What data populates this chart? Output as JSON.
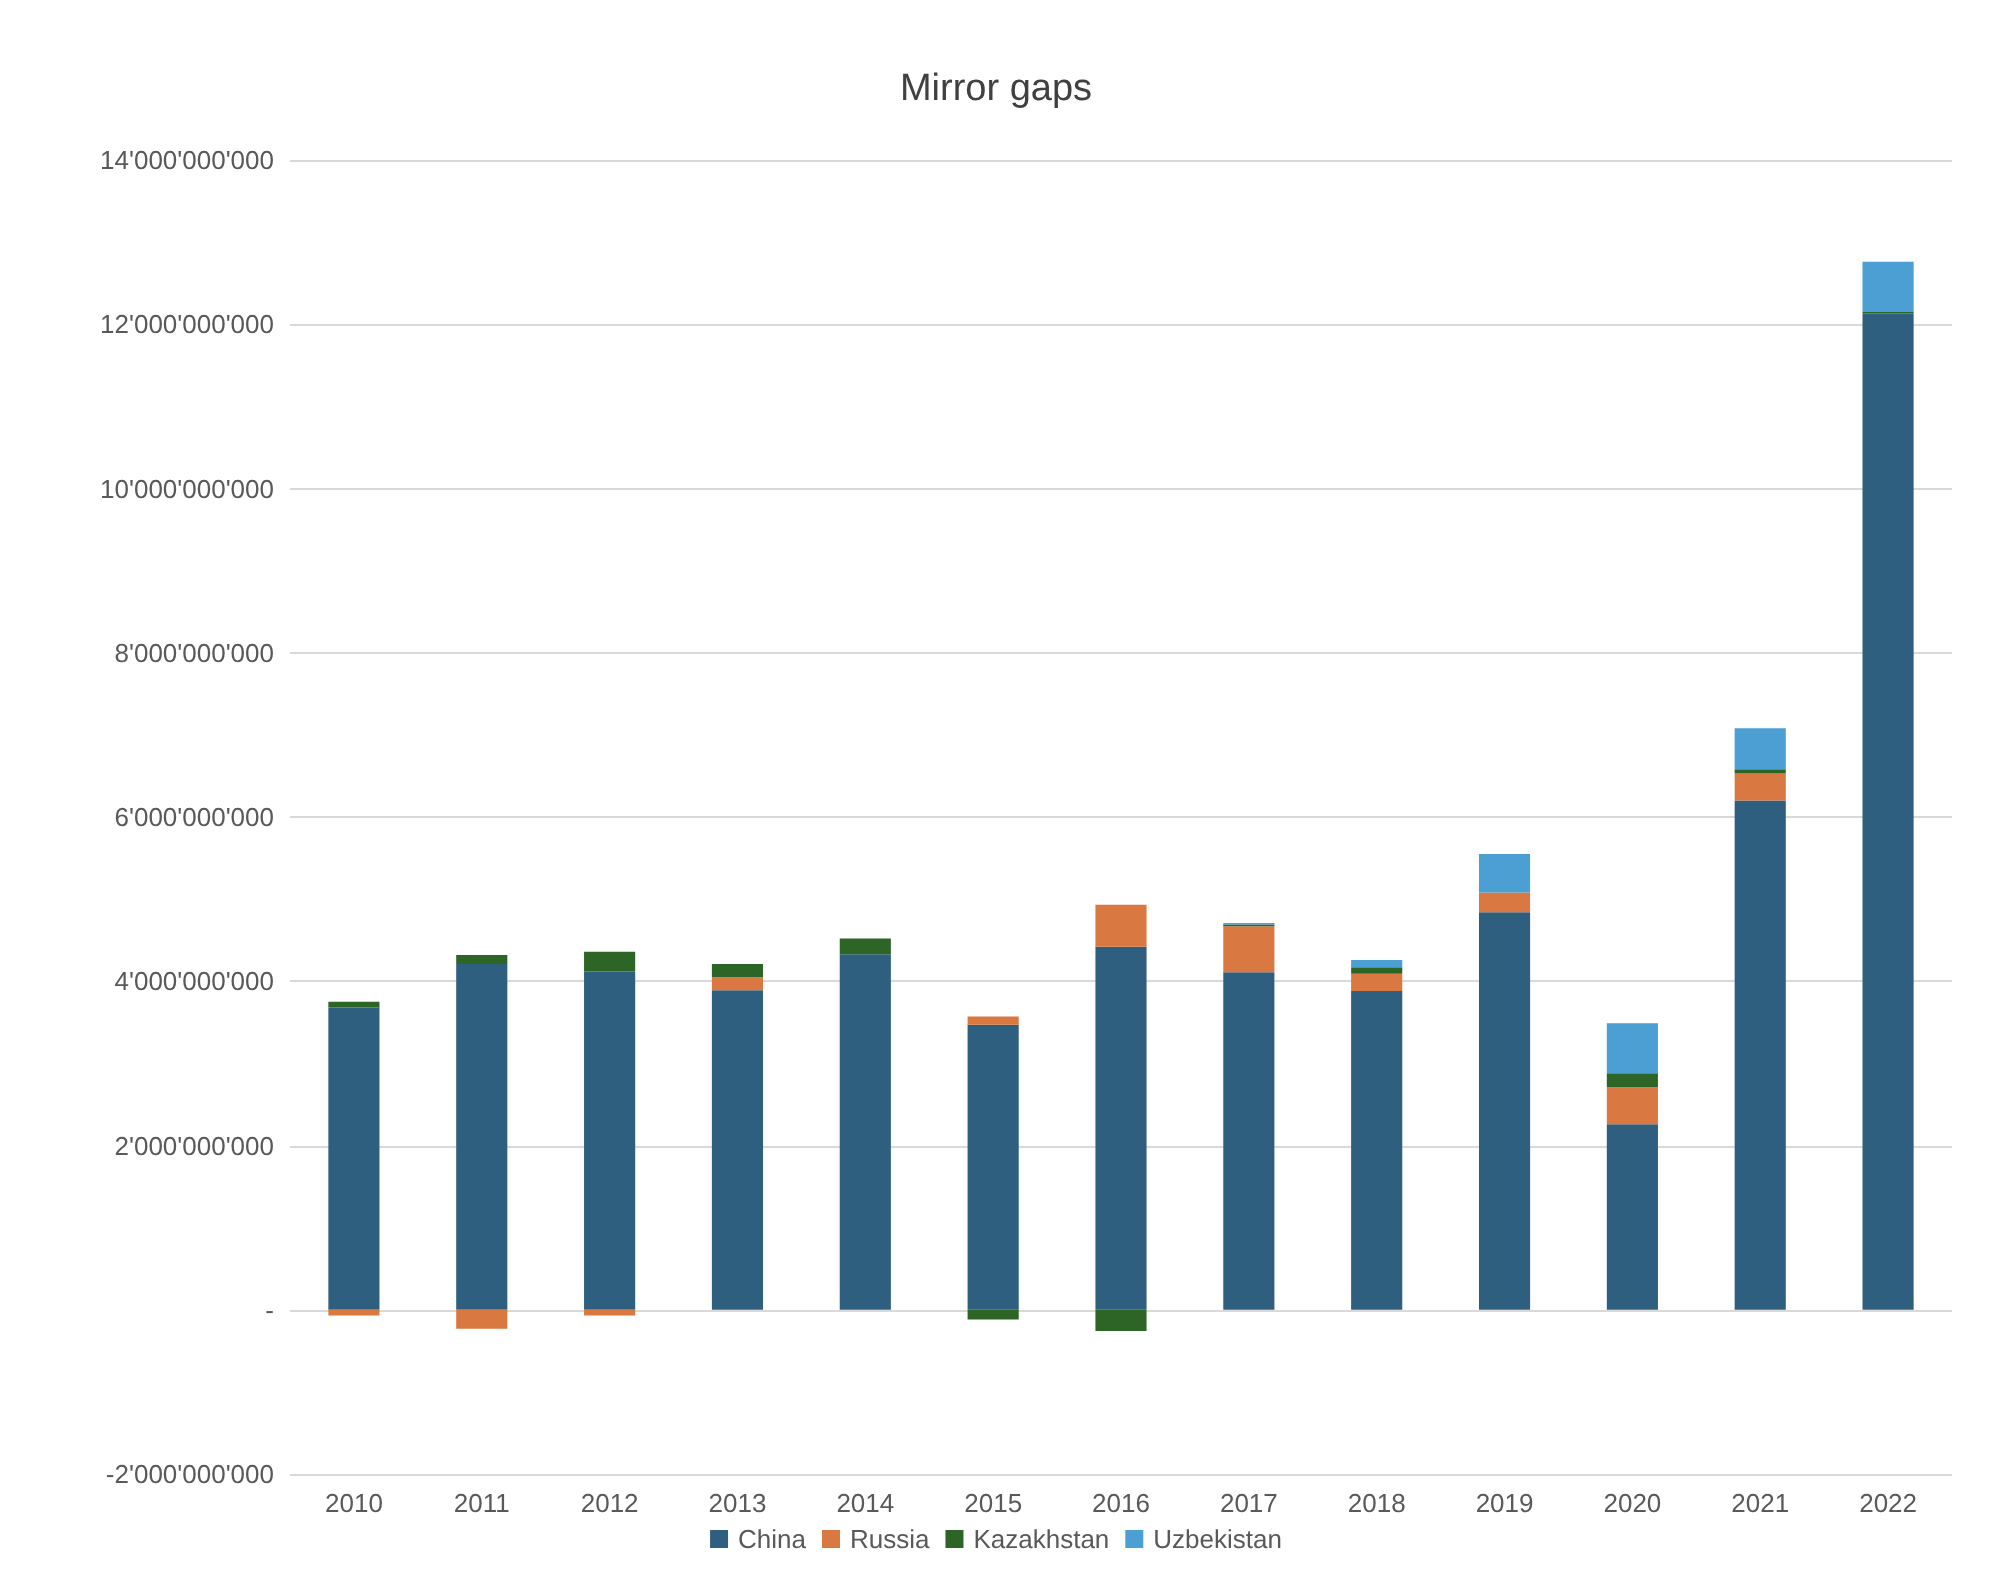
{
  "chart_data": {
    "type": "bar",
    "title": "Mirror gaps",
    "stacked": true,
    "grid": "y",
    "legend": "bottom",
    "categories": [
      "2010",
      "2011",
      "2012",
      "2013",
      "2014",
      "2015",
      "2016",
      "2017",
      "2018",
      "2019",
      "2020",
      "2021",
      "2022"
    ],
    "ylim": [
      -2000000000,
      14000000000
    ],
    "yticks": [
      {
        "value": -2000000000,
        "label": "-2'000'000'000"
      },
      {
        "value": 0,
        "label": "-"
      },
      {
        "value": 2000000000,
        "label": "2'000'000'000"
      },
      {
        "value": 4000000000,
        "label": "4'000'000'000"
      },
      {
        "value": 6000000000,
        "label": "6'000'000'000"
      },
      {
        "value": 8000000000,
        "label": "8'000'000'000"
      },
      {
        "value": 10000000000,
        "label": "10'000'000'000"
      },
      {
        "value": 12000000000,
        "label": "12'000'000'000"
      },
      {
        "value": 14000000000,
        "label": "14'000'000'000"
      }
    ],
    "series": [
      {
        "name": "China",
        "color": "#2e5f7f",
        "values": [
          3680000000,
          4210000000,
          4120000000,
          3890000000,
          4330000000,
          3470000000,
          4420000000,
          4110000000,
          3880000000,
          4840000000,
          2260000000,
          6200000000,
          12130000000
        ]
      },
      {
        "name": "Russia",
        "color": "#d97840",
        "values": [
          -70000000,
          -230000000,
          -70000000,
          160000000,
          null,
          100000000,
          510000000,
          560000000,
          210000000,
          240000000,
          450000000,
          330000000,
          null
        ]
      },
      {
        "name": "Kazakhstan",
        "color": "#2d6527",
        "values": [
          70000000,
          110000000,
          240000000,
          160000000,
          190000000,
          -120000000,
          -260000000,
          20000000,
          80000000,
          null,
          170000000,
          50000000,
          20000000
        ]
      },
      {
        "name": "Uzbekistan",
        "color": "#4b9fd3",
        "values": [
          null,
          null,
          null,
          null,
          null,
          null,
          null,
          20000000,
          90000000,
          470000000,
          610000000,
          500000000,
          610000000
        ]
      }
    ]
  }
}
